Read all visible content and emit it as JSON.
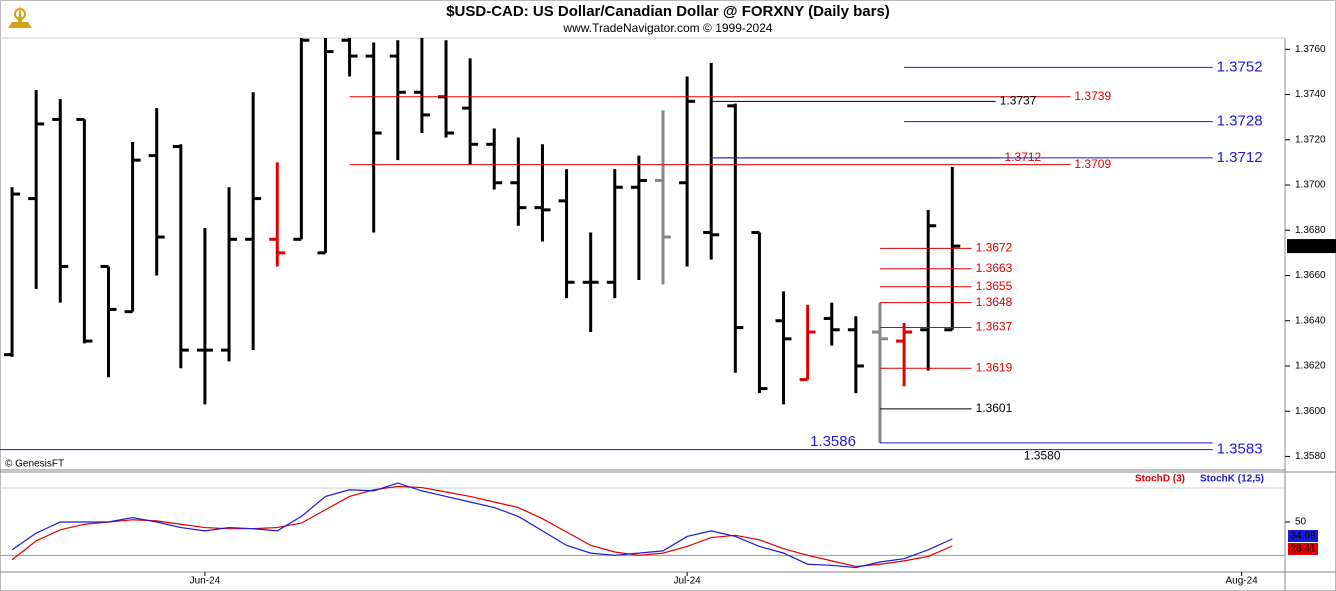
{
  "chart_data": [
    {
      "type": "ohlc",
      "title": "$USD-CAD:  US Dollar/Canadian Dollar @ FORXNY  (Daily bars)",
      "subtitle": "www.TradeNavigator.com © 1999-2024",
      "source": "© GenesisFT",
      "xlim": [
        -0.5,
        52.8
      ],
      "ylim": [
        1.3574,
        1.3765
      ],
      "yticks": [
        {
          "value": 1.358,
          "label": "1.3580"
        },
        {
          "value": 1.36,
          "label": "1.3600"
        },
        {
          "value": 1.362,
          "label": "1.3620"
        },
        {
          "value": 1.364,
          "label": "1.3640"
        },
        {
          "value": 1.366,
          "label": "1.3660"
        },
        {
          "value": 1.368,
          "label": "1.3680"
        },
        {
          "value": 1.37,
          "label": "1.3700"
        },
        {
          "value": 1.372,
          "label": "1.3720"
        },
        {
          "value": 1.374,
          "label": "1.3740"
        },
        {
          "value": 1.376,
          "label": "1.3760"
        }
      ],
      "ohlc": {
        "open": [
          1.3625,
          1.3694,
          1.3729,
          1.3729,
          1.3664,
          1.3644,
          1.3713,
          1.3717,
          1.3627,
          1.3627,
          1.3676,
          1.3676,
          1.3676,
          1.367,
          1.3764,
          1.3757,
          1.3757,
          1.3741,
          1.3739,
          1.3734,
          1.3718,
          1.3701,
          1.369,
          1.3693,
          1.3657,
          1.3657,
          1.3699,
          1.3702,
          1.3701,
          1.3679,
          1.3735,
          1.3679,
          1.364,
          1.3614,
          1.3641,
          1.3636,
          1.3635,
          1.3631,
          1.3636,
          1.3636
        ],
        "high": [
          1.3699,
          1.3742,
          1.3738,
          1.3729,
          1.3664,
          1.3719,
          1.3734,
          1.3718,
          1.3681,
          1.3699,
          1.3741,
          1.371,
          1.3765,
          1.3765,
          1.3765,
          1.3763,
          1.3764,
          1.3765,
          1.3764,
          1.3756,
          1.3725,
          1.3721,
          1.3718,
          1.3707,
          1.3679,
          1.3707,
          1.3713,
          1.3733,
          1.3748,
          1.3754,
          1.3736,
          1.3679,
          1.3653,
          1.3647,
          1.3648,
          1.3642,
          1.3648,
          1.3639,
          1.3689,
          1.3708
        ],
        "low": [
          1.3624,
          1.3654,
          1.3648,
          1.363,
          1.3615,
          1.3644,
          1.366,
          1.3619,
          1.3603,
          1.3622,
          1.3627,
          1.3664,
          1.3676,
          1.367,
          1.3748,
          1.3679,
          1.3711,
          1.3723,
          1.3721,
          1.3709,
          1.3698,
          1.3682,
          1.3675,
          1.365,
          1.3635,
          1.365,
          1.3658,
          1.3656,
          1.3664,
          1.3667,
          1.3617,
          1.3608,
          1.3603,
          1.3614,
          1.3629,
          1.3608,
          1.3586,
          1.3611,
          1.3618,
          1.3636
        ],
        "close": [
          1.3696,
          1.3727,
          1.3664,
          1.3631,
          1.3645,
          1.3711,
          1.3677,
          1.3627,
          1.3627,
          1.3676,
          1.3694,
          1.367,
          1.3764,
          1.3759,
          1.3757,
          1.3723,
          1.3741,
          1.3731,
          1.3723,
          1.3718,
          1.3701,
          1.369,
          1.3689,
          1.3657,
          1.3657,
          1.3699,
          1.3702,
          1.3677,
          1.3737,
          1.3678,
          1.3637,
          1.361,
          1.3632,
          1.3635,
          1.3636,
          1.362,
          1.3632,
          1.3635,
          1.3682,
          1.3673
        ],
        "colors": [
          "#000",
          "#000",
          "#000",
          "#000",
          "#000",
          "#000",
          "#000",
          "#000",
          "#000",
          "#000",
          "#000",
          "#e00000",
          "#000",
          "#000",
          "#000",
          "#000",
          "#000",
          "#000",
          "#000",
          "#000",
          "#000",
          "#000",
          "#000",
          "#000",
          "#000",
          "#000",
          "#000",
          "#888",
          "#000",
          "#000",
          "#000",
          "#000",
          "#000",
          "#e00000",
          "#000",
          "#000",
          "#888",
          "#e00000",
          "#000",
          "#000"
        ]
      },
      "levels": [
        {
          "value": 1.3739,
          "color": "#e00000",
          "from": 14,
          "to": 43.9
        },
        {
          "value": 1.3709,
          "color": "#e00000",
          "from": 14,
          "to": 43.9
        },
        {
          "value": 1.3737,
          "color": "#000000",
          "from": 29,
          "to": 40.8
        },
        {
          "value": 1.3712,
          "color": "#e00000",
          "from": 29,
          "to": 41
        },
        {
          "value": 1.3752,
          "color": "#1a1adc",
          "from": 37,
          "to": 49.8
        },
        {
          "value": 1.3728,
          "color": "#1a1adc",
          "from": 37,
          "to": 49.8
        },
        {
          "value": 1.3712,
          "color": "#1a1adc",
          "from": 29,
          "to": 49.8
        },
        {
          "value": 1.3672,
          "color": "#e00000",
          "from": 36,
          "to": 39.8
        },
        {
          "value": 1.3663,
          "color": "#e00000",
          "from": 36,
          "to": 39.8
        },
        {
          "value": 1.3655,
          "color": "#e00000",
          "from": 36,
          "to": 39.8
        },
        {
          "value": 1.3648,
          "color": "#e00000",
          "from": 36,
          "to": 39.8
        },
        {
          "value": 1.3637,
          "color": "#e00000",
          "from": 36,
          "to": 39.8
        },
        {
          "value": 1.3619,
          "color": "#e00000",
          "from": 36,
          "to": 39.8
        },
        {
          "value": 1.3601,
          "color": "#000000",
          "from": 36,
          "to": 39.8
        },
        {
          "value": 1.3586,
          "color": "#1a1adc",
          "from": 36,
          "to": 49.8,
          "label_side": "left"
        },
        {
          "value": 1.3583,
          "color": "#1a1adc",
          "from": -0.5,
          "to": 49.8
        },
        {
          "value": 1.358,
          "label": "1.3580",
          "color": "#000000",
          "from": 41.8,
          "to": 41.8
        }
      ]
    },
    {
      "type": "line",
      "xlim": [
        -0.5,
        52.8
      ],
      "ylim": [
        5,
        95
      ],
      "yticks": [
        50
      ],
      "hlines": [
        20
      ],
      "xticks": [
        {
          "value": 8,
          "label": "Jun-24"
        },
        {
          "value": 28,
          "label": "Jul-24"
        },
        {
          "value": 51,
          "label": "Aug-24"
        }
      ],
      "series": [
        {
          "name": "StochD (3)",
          "color": "#e00000",
          "values": [
            16,
            33,
            43,
            48,
            50,
            52,
            51,
            48,
            45,
            44,
            44,
            45,
            49,
            61,
            73,
            79,
            82,
            81,
            77,
            73,
            68,
            63,
            53,
            41,
            29,
            23,
            20,
            22,
            28,
            36,
            38,
            34,
            26,
            20,
            15,
            10,
            12,
            15,
            19,
            28.41
          ]
        },
        {
          "name": "StochK (12,5)",
          "color": "#1a1adc",
          "values": [
            25,
            40,
            50,
            50,
            50,
            54,
            50,
            45,
            42,
            45,
            44,
            42,
            55,
            73,
            79,
            78,
            85,
            78,
            73,
            68,
            63,
            55,
            42,
            29,
            22,
            20,
            22,
            24,
            37,
            42,
            37,
            28,
            22,
            12,
            11,
            9,
            14,
            17,
            25,
            34.69
          ]
        }
      ]
    }
  ]
}
